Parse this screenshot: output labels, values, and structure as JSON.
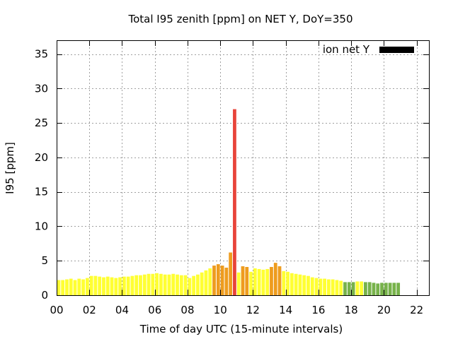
{
  "chart_data": {
    "type": "bar",
    "title": "Total I95 zenith [ppm] on NET Y, DoY=350",
    "xlabel": "Time of day UTC (15-minute intervals)",
    "ylabel": "I95 [ppm]",
    "interval_hours": 0.25,
    "xlim": [
      0,
      22.75
    ],
    "ylim": [
      0,
      37
    ],
    "xticks": [
      0,
      2,
      4,
      6,
      8,
      10,
      12,
      14,
      16,
      18,
      20,
      22
    ],
    "xtick_labels": [
      "00",
      "02",
      "04",
      "06",
      "08",
      "10",
      "12",
      "14",
      "16",
      "18",
      "20",
      "22"
    ],
    "yticks": [
      0,
      5,
      10,
      15,
      20,
      25,
      30,
      35
    ],
    "ytick_labels": [
      "0",
      "5",
      "10",
      "15",
      "20",
      "25",
      "30",
      "35"
    ],
    "grid": true,
    "legend": {
      "label": "ion net Y",
      "color": "#000000",
      "position": "top-right"
    },
    "color_scale": [
      {
        "min": 0,
        "max": 2,
        "color": "#77b24a"
      },
      {
        "min": 2,
        "max": 4,
        "color": "#ffff33"
      },
      {
        "min": 4,
        "max": 7,
        "color": "#ee9c1e"
      },
      {
        "min": 7,
        "max": 1000,
        "color": "#e8443a"
      }
    ],
    "values": [
      2.2,
      2.2,
      2.3,
      2.4,
      2.2,
      2.4,
      2.3,
      2.5,
      2.8,
      2.8,
      2.7,
      2.6,
      2.7,
      2.6,
      2.5,
      2.6,
      2.7,
      2.7,
      2.8,
      2.9,
      2.9,
      3.0,
      3.1,
      3.1,
      3.2,
      3.1,
      3.0,
      3.0,
      3.1,
      3.0,
      2.9,
      2.9,
      2.5,
      2.8,
      3.0,
      3.3,
      3.6,
      3.9,
      4.3,
      4.5,
      4.3,
      4.0,
      6.2,
      27.0,
      3.3,
      4.2,
      4.1,
      3.4,
      3.9,
      3.8,
      3.7,
      3.8,
      4.1,
      4.7,
      4.2,
      3.5,
      3.4,
      3.2,
      3.1,
      3.0,
      2.9,
      2.8,
      2.6,
      2.5,
      2.4,
      2.4,
      2.3,
      2.3,
      2.2,
      2.1,
      1.9,
      1.9,
      1.9,
      2.0,
      2.0,
      1.9,
      1.9,
      1.8,
      1.7,
      1.8,
      1.8,
      1.8,
      1.8,
      1.8
    ]
  }
}
